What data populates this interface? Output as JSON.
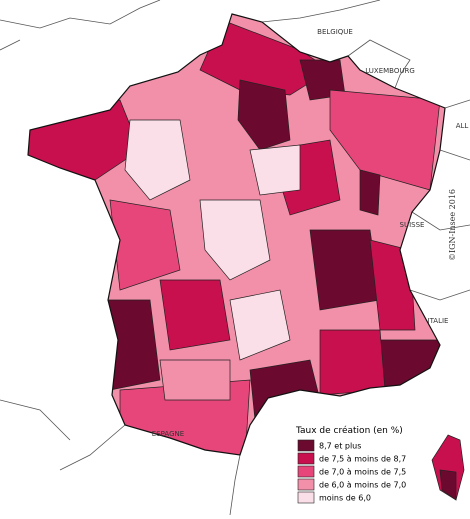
{
  "legend": {
    "title": "Taux de création (en %)",
    "items": [
      {
        "label": "8,7 et plus",
        "color": "#6b0a2e"
      },
      {
        "label": "de 7,5 à moins de 8,7",
        "color": "#c8104f"
      },
      {
        "label": "de 7,0 à moins de 7,5",
        "color": "#e6467a"
      },
      {
        "label": "de 6,0 à moins de 7,0",
        "color": "#f290aa"
      },
      {
        "label": "moins de 6,0",
        "color": "#fbdfe8"
      }
    ]
  },
  "countries": [
    "BELGIQUE",
    "LUXEMBOURG",
    "ALL",
    "SUISSE",
    "ITALIE",
    "ESPAGNE"
  ],
  "credit": "©IGN-Insee 2016"
}
